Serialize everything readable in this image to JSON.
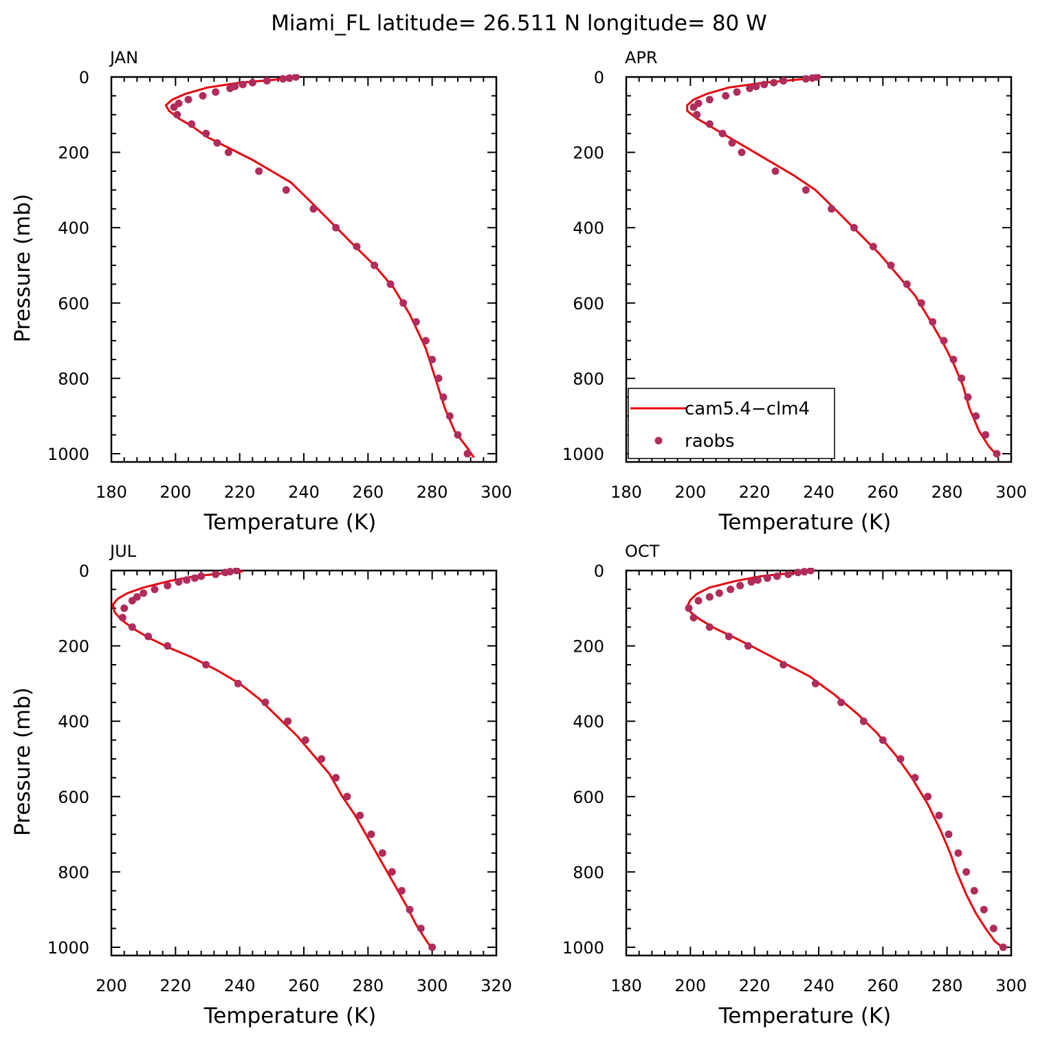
{
  "title": "Miami_FL  latitude= 26.511 N longitude= 80 W",
  "legend": {
    "model_label": "cam5.4−clm4",
    "obs_label": "raobs"
  },
  "colors": {
    "model_line": "#e8000b",
    "obs_marker": "#b02c5c",
    "axis": "#000000"
  },
  "chart_data": [
    {
      "type": "line",
      "panel": "JAN",
      "xlabel": "Temperature (K)",
      "ylabel": "Pressure (mb)",
      "xlim": [
        180,
        300
      ],
      "ylim": [
        1020,
        0
      ],
      "xticks": [
        180,
        200,
        220,
        240,
        260,
        280,
        300
      ],
      "yticks": [
        0,
        200,
        400,
        600,
        800,
        1000
      ],
      "legend": false,
      "series": [
        {
          "name": "cam5.4−clm4",
          "kind": "line",
          "points": [
            [
              238,
              2
            ],
            [
              230,
              8
            ],
            [
              220,
              15
            ],
            [
              210,
              28
            ],
            [
              203,
              45
            ],
            [
              199,
              60
            ],
            [
              197,
              75
            ],
            [
              198,
              90
            ],
            [
              201,
              110
            ],
            [
              205,
              130
            ],
            [
              210,
              160
            ],
            [
              217,
              190
            ],
            [
              224,
              220
            ],
            [
              230,
              250
            ],
            [
              236,
              280
            ],
            [
              242,
              330
            ],
            [
              249,
              390
            ],
            [
              256,
              450
            ],
            [
              262,
              500
            ],
            [
              268,
              560
            ],
            [
              273,
              630
            ],
            [
              278,
              720
            ],
            [
              281,
              800
            ],
            [
              284,
              880
            ],
            [
              287,
              940
            ],
            [
              291,
              985
            ],
            [
              293,
              1010
            ]
          ]
        },
        {
          "name": "raobs",
          "kind": "scatter",
          "points": [
            [
              237.5,
              0
            ],
            [
              235.5,
              3
            ],
            [
              233.5,
              5
            ],
            [
              228.5,
              10
            ],
            [
              224,
              15
            ],
            [
              221,
              20
            ],
            [
              218.5,
              25
            ],
            [
              217,
              30
            ],
            [
              212.5,
              40
            ],
            [
              208.5,
              50
            ],
            [
              204,
              60
            ],
            [
              201,
              70
            ],
            [
              199.5,
              80
            ],
            [
              200.5,
              100
            ],
            [
              205,
              125
            ],
            [
              209.5,
              150
            ],
            [
              213,
              175
            ],
            [
              216.5,
              200
            ],
            [
              226,
              250
            ],
            [
              234.5,
              300
            ],
            [
              243,
              350
            ],
            [
              250,
              400
            ],
            [
              256.5,
              450
            ],
            [
              262,
              500
            ],
            [
              267,
              550
            ],
            [
              271,
              600
            ],
            [
              275,
              650
            ],
            [
              278,
              700
            ],
            [
              280,
              750
            ],
            [
              282,
              800
            ],
            [
              283.5,
              850
            ],
            [
              285.5,
              900
            ],
            [
              288,
              950
            ],
            [
              291,
              1000
            ]
          ]
        }
      ]
    },
    {
      "type": "line",
      "panel": "APR",
      "xlabel": "Temperature (K)",
      "ylabel": "",
      "xlim": [
        180,
        300
      ],
      "ylim": [
        1020,
        0
      ],
      "xticks": [
        180,
        200,
        220,
        240,
        260,
        280,
        300
      ],
      "yticks": [
        0,
        200,
        400,
        600,
        800,
        1000
      ],
      "legend": true,
      "series": [
        {
          "name": "cam5.4−clm4",
          "kind": "line",
          "points": [
            [
              240,
              2
            ],
            [
              232,
              8
            ],
            [
              222,
              16
            ],
            [
              212,
              28
            ],
            [
              205,
              45
            ],
            [
              201,
              60
            ],
            [
              199,
              75
            ],
            [
              199,
              90
            ],
            [
              202,
              110
            ],
            [
              206,
              130
            ],
            [
              212,
              160
            ],
            [
              218,
              190
            ],
            [
              225,
              225
            ],
            [
              232,
              260
            ],
            [
              239,
              300
            ],
            [
              245,
              350
            ],
            [
              252,
              410
            ],
            [
              259,
              470
            ],
            [
              265,
              530
            ],
            [
              270,
              580
            ],
            [
              275,
              650
            ],
            [
              279,
              710
            ],
            [
              282,
              760
            ],
            [
              285,
              820
            ],
            [
              287,
              880
            ],
            [
              290,
              940
            ],
            [
              293,
              980
            ],
            [
              296,
              1008
            ]
          ]
        },
        {
          "name": "raobs",
          "kind": "scatter",
          "points": [
            [
              239.5,
              0
            ],
            [
              238,
              3
            ],
            [
              236,
              5
            ],
            [
              229,
              10
            ],
            [
              226,
              15
            ],
            [
              223,
              20
            ],
            [
              220.5,
              25
            ],
            [
              218.5,
              30
            ],
            [
              214.5,
              40
            ],
            [
              211,
              50
            ],
            [
              206,
              60
            ],
            [
              202.5,
              70
            ],
            [
              201,
              80
            ],
            [
              202,
              100
            ],
            [
              206,
              125
            ],
            [
              210,
              150
            ],
            [
              213,
              175
            ],
            [
              216,
              200
            ],
            [
              226.5,
              250
            ],
            [
              236,
              300
            ],
            [
              244,
              350
            ],
            [
              251,
              400
            ],
            [
              257,
              450
            ],
            [
              262.5,
              500
            ],
            [
              267.5,
              550
            ],
            [
              272,
              600
            ],
            [
              275.5,
              650
            ],
            [
              279,
              700
            ],
            [
              282,
              750
            ],
            [
              284.5,
              800
            ],
            [
              286.5,
              850
            ],
            [
              289,
              900
            ],
            [
              292,
              950
            ],
            [
              295.5,
              1000
            ]
          ]
        }
      ]
    },
    {
      "type": "line",
      "panel": "JUL",
      "xlabel": "Temperature (K)",
      "ylabel": "Pressure (mb)",
      "xlim": [
        200,
        320
      ],
      "ylim": [
        1020,
        0
      ],
      "xticks": [
        200,
        220,
        240,
        260,
        280,
        300,
        320
      ],
      "yticks": [
        0,
        200,
        400,
        600,
        800,
        1000
      ],
      "legend": false,
      "series": [
        {
          "name": "cam5.4−clm4",
          "kind": "line",
          "points": [
            [
              241,
              2
            ],
            [
              234,
              8
            ],
            [
              226,
              15
            ],
            [
              218,
              28
            ],
            [
              210,
              45
            ],
            [
              205,
              60
            ],
            [
              202,
              75
            ],
            [
              200.5,
              90
            ],
            [
              201,
              110
            ],
            [
              203,
              130
            ],
            [
              207,
              155
            ],
            [
              212,
              180
            ],
            [
              218,
              205
            ],
            [
              225,
              230
            ],
            [
              233,
              265
            ],
            [
              240,
              300
            ],
            [
              246,
              340
            ],
            [
              252,
              390
            ],
            [
              258,
              440
            ],
            [
              263,
              490
            ],
            [
              268,
              540
            ],
            [
              272,
              600
            ],
            [
              276,
              650
            ],
            [
              280,
              710
            ],
            [
              284,
              770
            ],
            [
              288,
              830
            ],
            [
              292,
              890
            ],
            [
              295,
              940
            ],
            [
              298,
              980
            ],
            [
              300,
              1005
            ]
          ]
        },
        {
          "name": "raobs",
          "kind": "scatter",
          "points": [
            [
              239,
              0
            ],
            [
              237,
              3
            ],
            [
              235.5,
              5
            ],
            [
              232.5,
              10
            ],
            [
              228,
              15
            ],
            [
              226,
              20
            ],
            [
              223.5,
              25
            ],
            [
              221,
              30
            ],
            [
              217.5,
              40
            ],
            [
              213.5,
              50
            ],
            [
              210,
              60
            ],
            [
              208,
              70
            ],
            [
              206.5,
              80
            ],
            [
              204,
              100
            ],
            [
              203.5,
              125
            ],
            [
              206.5,
              150
            ],
            [
              211.5,
              175
            ],
            [
              217.5,
              200
            ],
            [
              229.5,
              250
            ],
            [
              239.5,
              300
            ],
            [
              248,
              350
            ],
            [
              255,
              400
            ],
            [
              260.5,
              450
            ],
            [
              265.5,
              500
            ],
            [
              270,
              550
            ],
            [
              273.5,
              600
            ],
            [
              277.5,
              650
            ],
            [
              281,
              700
            ],
            [
              284.5,
              750
            ],
            [
              287.5,
              800
            ],
            [
              290.5,
              850
            ],
            [
              293,
              900
            ],
            [
              296.5,
              950
            ],
            [
              300,
              1000
            ]
          ]
        }
      ]
    },
    {
      "type": "line",
      "panel": "OCT",
      "xlabel": "Temperature (K)",
      "ylabel": "",
      "xlim": [
        180,
        300
      ],
      "ylim": [
        1020,
        0
      ],
      "xticks": [
        180,
        200,
        220,
        240,
        260,
        280,
        300
      ],
      "yticks": [
        0,
        200,
        400,
        600,
        800,
        1000
      ],
      "legend": false,
      "series": [
        {
          "name": "cam5.4−clm4",
          "kind": "line",
          "points": [
            [
              238,
              2
            ],
            [
              230,
              8
            ],
            [
              222,
              15
            ],
            [
              214,
              28
            ],
            [
              206,
              45
            ],
            [
              202,
              62
            ],
            [
              200,
              78
            ],
            [
              199,
              95
            ],
            [
              200,
              110
            ],
            [
              203,
              130
            ],
            [
              208,
              155
            ],
            [
              213,
              175
            ],
            [
              220,
              205
            ],
            [
              229,
              245
            ],
            [
              237,
              280
            ],
            [
              245,
              330
            ],
            [
              252,
              380
            ],
            [
              258,
              430
            ],
            [
              264,
              490
            ],
            [
              269,
              550
            ],
            [
              274,
              620
            ],
            [
              278,
              690
            ],
            [
              281,
              750
            ],
            [
              283,
              800
            ],
            [
              286,
              860
            ],
            [
              289,
              910
            ],
            [
              292,
              950
            ],
            [
              295,
              985
            ],
            [
              298,
              1005
            ]
          ]
        },
        {
          "name": "raobs",
          "kind": "scatter",
          "points": [
            [
              237.5,
              0
            ],
            [
              235.5,
              3
            ],
            [
              233.5,
              5
            ],
            [
              230.5,
              10
            ],
            [
              227,
              15
            ],
            [
              224,
              20
            ],
            [
              221,
              25
            ],
            [
              219,
              30
            ],
            [
              215.5,
              40
            ],
            [
              212.5,
              50
            ],
            [
              209,
              60
            ],
            [
              206,
              70
            ],
            [
              202.5,
              80
            ],
            [
              199.5,
              100
            ],
            [
              201,
              125
            ],
            [
              206,
              150
            ],
            [
              212,
              175
            ],
            [
              218,
              200
            ],
            [
              229,
              250
            ],
            [
              239,
              300
            ],
            [
              247,
              350
            ],
            [
              254,
              400
            ],
            [
              260,
              450
            ],
            [
              265.5,
              500
            ],
            [
              270,
              550
            ],
            [
              274,
              600
            ],
            [
              277.5,
              650
            ],
            [
              280.5,
              700
            ],
            [
              283.5,
              750
            ],
            [
              286,
              800
            ],
            [
              288.5,
              850
            ],
            [
              291.5,
              900
            ],
            [
              294.5,
              950
            ],
            [
              297.5,
              1000
            ]
          ]
        }
      ]
    }
  ]
}
